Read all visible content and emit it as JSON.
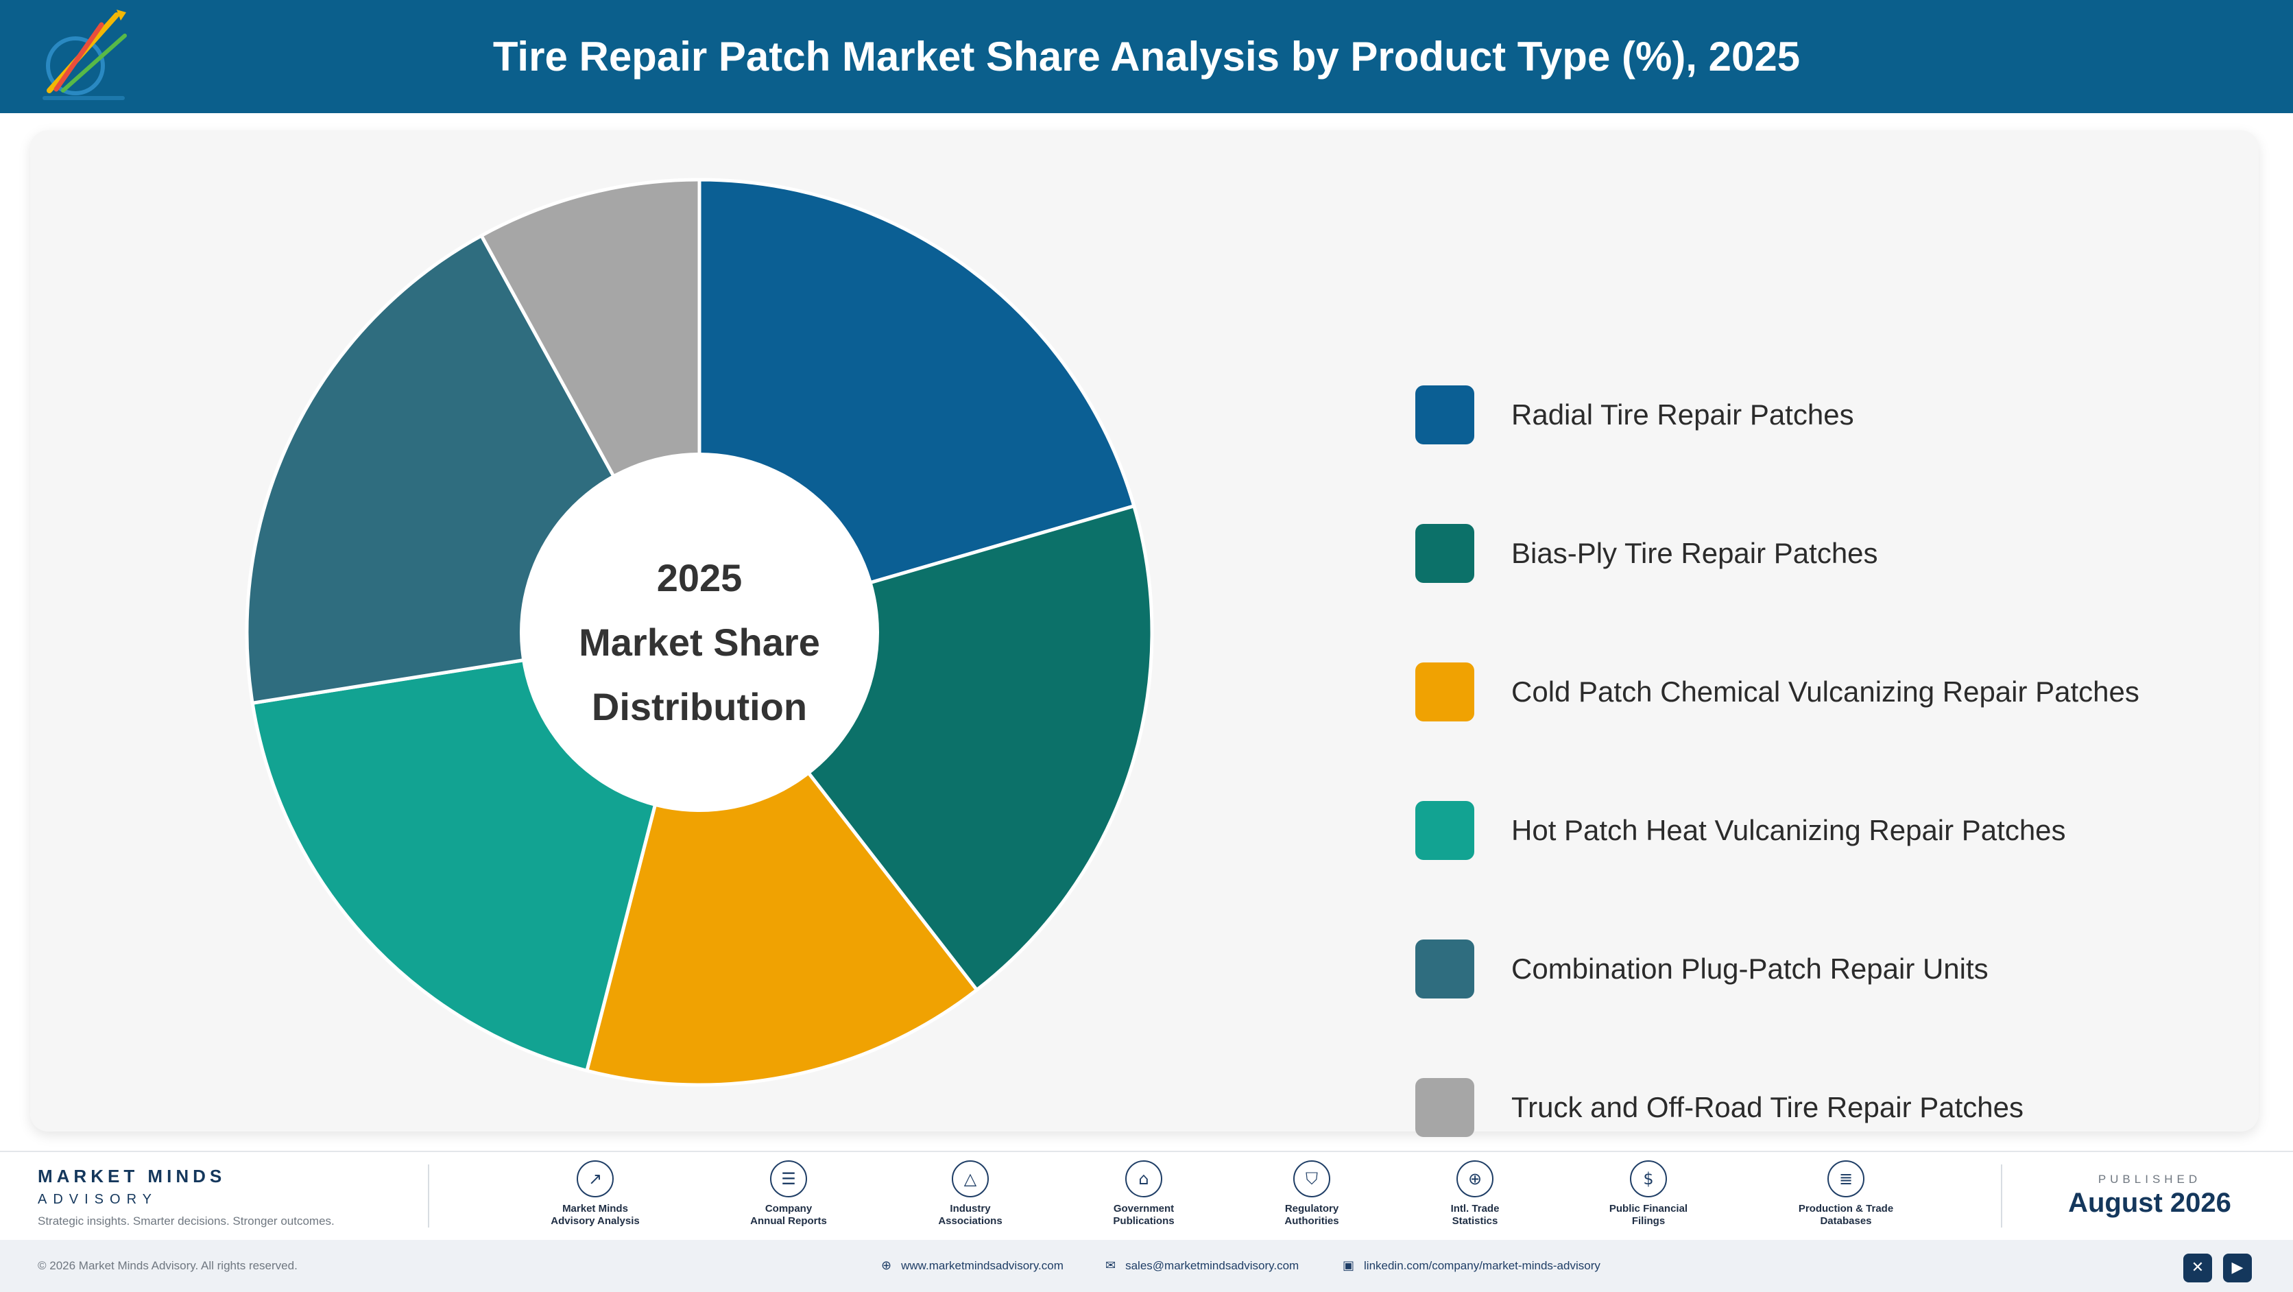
{
  "header": {
    "title": "Tire Repair Patch Market Share Analysis by Product Type (%), 2025",
    "logo_icon": "market-minds-logo-icon"
  },
  "chart_data": {
    "type": "pie",
    "title": "Tire Repair Patch Market Share Analysis by Product Type (%), 2025",
    "center_label": [
      "2025",
      "Market Share",
      "Distribution"
    ],
    "legend_position": "right",
    "categories": [
      "Radial Tire Repair Patches",
      "Bias-Ply Tire Repair Patches",
      "Cold Patch Chemical Vulcanizing Repair Patches",
      "Hot Patch Heat Vulcanizing Repair Patches",
      "Combination Plug-Patch Repair Units",
      "Truck and Off-Road Tire Repair Patches"
    ],
    "values": [
      20.5,
      19.0,
      14.5,
      18.5,
      19.5,
      8.0
    ],
    "colors": [
      "#0b5f94",
      "#0c7169",
      "#f0a202",
      "#12a392",
      "#2f6d7f",
      "#a6a6a6"
    ]
  },
  "footer": {
    "brand_name": "MARKET MINDS",
    "brand_sub": "ADVISORY",
    "tagline": "Strategic insights. Smarter decisions. Stronger outcomes.",
    "sources": [
      {
        "label": "Market Minds\nAdvisory Analysis",
        "icon": "trend-chart-icon"
      },
      {
        "label": "Company\nAnnual Reports",
        "icon": "document-icon"
      },
      {
        "label": "Industry\nAssociations",
        "icon": "network-icon"
      },
      {
        "label": "Government\nPublications",
        "icon": "government-building-icon"
      },
      {
        "label": "Regulatory\nAuthorities",
        "icon": "shield-icon"
      },
      {
        "label": "Intl. Trade\nStatistics",
        "icon": "globe-icon"
      },
      {
        "label": "Public Financial\nFilings",
        "icon": "dollar-icon"
      },
      {
        "label": "Production & Trade\nDatabases",
        "icon": "database-icon"
      }
    ],
    "published_label": "PUBLISHED",
    "published_date": "August 2026",
    "copyright": "© 2026 Market Minds Advisory. All rights reserved.",
    "website": "www.marketmindsadvisory.com",
    "email": "sales@marketmindsadvisory.com",
    "linkedin": "linkedin.com/company/market-minds-advisory",
    "social": [
      {
        "icon": "x-icon"
      },
      {
        "icon": "youtube-icon"
      }
    ]
  }
}
